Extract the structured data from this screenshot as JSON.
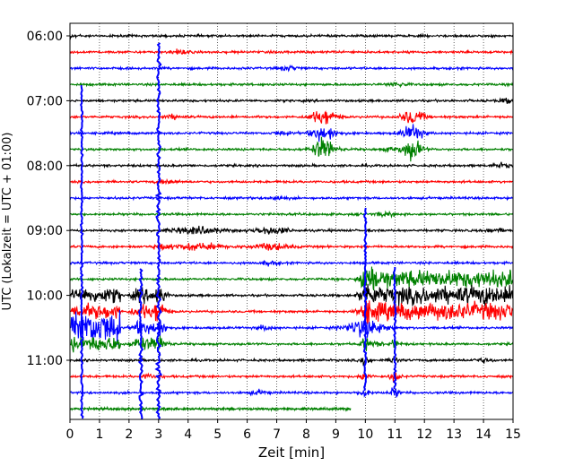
{
  "chart_data": {
    "type": "line",
    "subtype": "helicorder",
    "title": "",
    "xlabel": "Zeit  [min]",
    "ylabel": "UTC (Lokalzeit = UTC + 01:00)",
    "xlim": [
      0,
      15
    ],
    "x_ticks": [
      "0",
      "1",
      "2",
      "3",
      "4",
      "5",
      "6",
      "7",
      "8",
      "9",
      "10",
      "11",
      "12",
      "13",
      "14",
      "15"
    ],
    "y_ticks": [
      "06:00",
      "07:00",
      "08:00",
      "09:00",
      "10:00",
      "11:00"
    ],
    "trace_start": "06:00",
    "trace_end": "11:45",
    "trace_interval_min": 15,
    "trace_count": 24,
    "last_trace_end_min": 9.5,
    "grid": "vertical dotted at each minute",
    "colors": [
      "#000000",
      "#ff0000",
      "#0000ff",
      "#008000"
    ],
    "events": [
      {
        "time": "10:30",
        "minute_range": [
          0,
          1.7
        ],
        "amplitude": "strong"
      },
      {
        "time": "10:15–10:30",
        "minute_range": [
          10.2,
          15
        ],
        "amplitude": "strong"
      },
      {
        "time": "07:45",
        "minute_range": [
          8.0,
          9.0
        ],
        "amplitude": "moderate"
      },
      {
        "time": "07:45",
        "minute_range": [
          11.2,
          12.0
        ],
        "amplitude": "moderate"
      },
      {
        "time": "various",
        "minute": 3.0,
        "amplitude": "spike"
      },
      {
        "time": "various",
        "minute": 2.4,
        "amplitude": "spike"
      },
      {
        "time": "various",
        "minute": 0.4,
        "amplitude": "spike"
      },
      {
        "time": "various",
        "minute": 10.0,
        "amplitude": "spike"
      },
      {
        "time": "various",
        "minute": 11.0,
        "amplitude": "spike"
      }
    ]
  }
}
